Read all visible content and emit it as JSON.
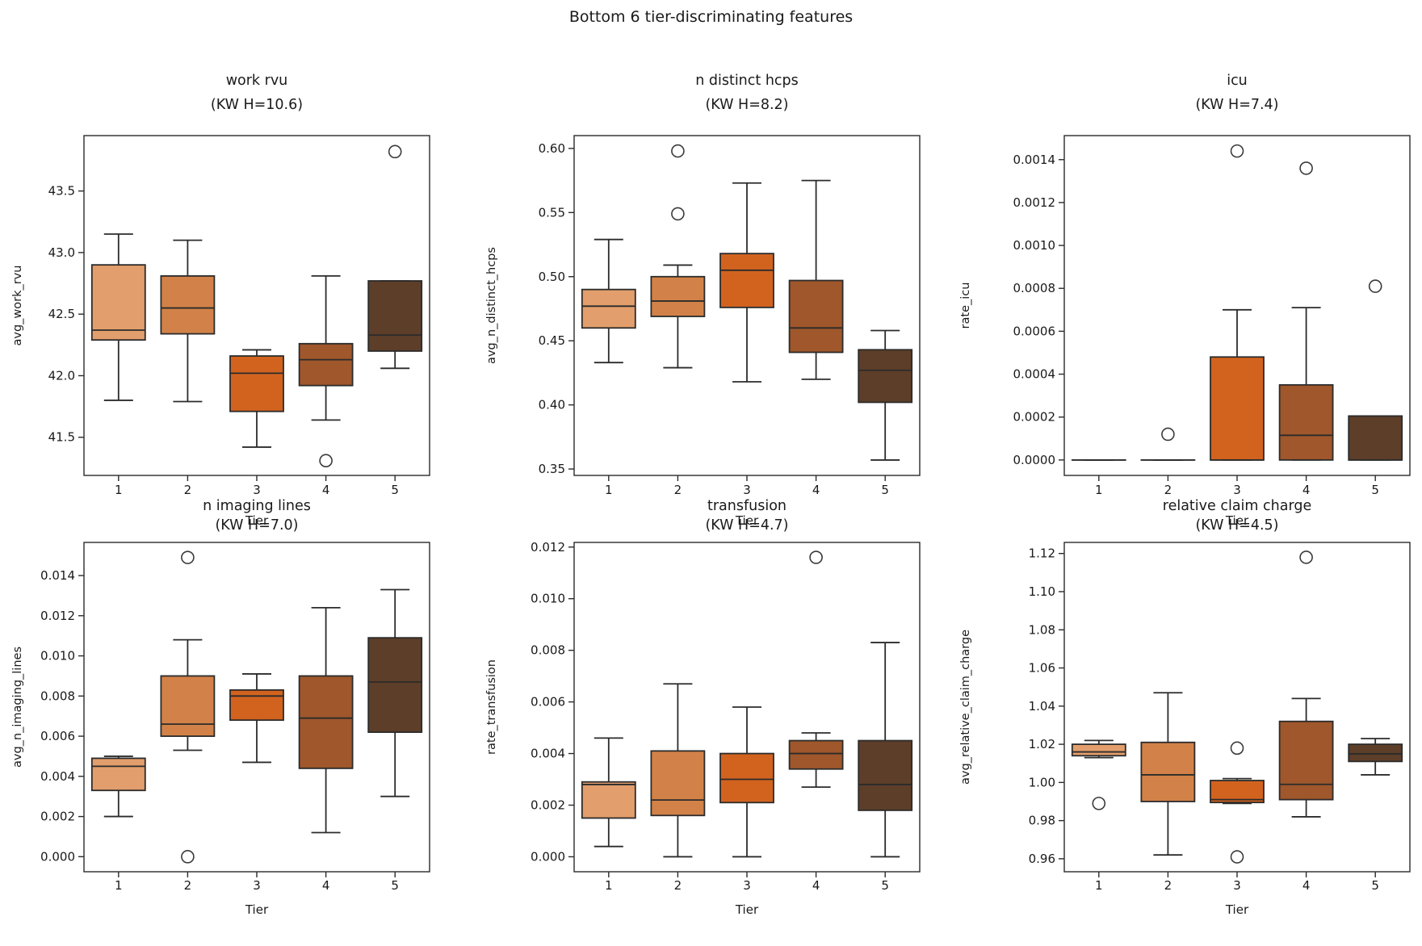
{
  "figure": {
    "suptitle": "Bottom 6 tier-discriminating features",
    "background_color": "#ffffff",
    "line_color": "#2b2b2b",
    "tier_colors": [
      "#e29e6c",
      "#d28248",
      "#d2631f",
      "#9f572b",
      "#5d3e28"
    ]
  },
  "chart_data": [
    {
      "type": "box",
      "title": "work rvu",
      "subtitle": "(KW H=10.6)",
      "xlabel": "Tier",
      "ylabel": "avg_work_rvu",
      "categories": [
        "1",
        "2",
        "3",
        "4",
        "5"
      ],
      "row": 0,
      "col": 0,
      "ylim": [
        41.19,
        43.95
      ],
      "ytick_values": [
        41.5,
        42.0,
        42.5,
        43.0,
        43.5
      ],
      "ytick_labels": [
        "41.5",
        "42.0",
        "42.5",
        "43.0",
        "43.5"
      ],
      "grid": false,
      "boxes": [
        {
          "whislo": 41.8,
          "q1": 42.29,
          "med": 42.37,
          "q3": 42.9,
          "whishi": 43.15,
          "fliers": []
        },
        {
          "whislo": 41.79,
          "q1": 42.34,
          "med": 42.55,
          "q3": 42.81,
          "whishi": 43.1,
          "fliers": []
        },
        {
          "whislo": 41.42,
          "q1": 41.71,
          "med": 42.02,
          "q3": 42.16,
          "whishi": 42.21,
          "fliers": []
        },
        {
          "whislo": 41.64,
          "q1": 41.92,
          "med": 42.13,
          "q3": 42.26,
          "whishi": 42.81,
          "fliers": [
            41.31
          ]
        },
        {
          "whislo": 42.06,
          "q1": 42.2,
          "med": 42.33,
          "q3": 42.77,
          "whishi": 42.77,
          "fliers": [
            43.82
          ]
        }
      ]
    },
    {
      "type": "box",
      "title": "n distinct hcps",
      "subtitle": "(KW H=8.2)",
      "xlabel": "Tier",
      "ylabel": "avg_n_distinct_hcps",
      "categories": [
        "1",
        "2",
        "3",
        "4",
        "5"
      ],
      "row": 0,
      "col": 1,
      "ylim": [
        0.345,
        0.61
      ],
      "ytick_values": [
        0.35,
        0.4,
        0.45,
        0.5,
        0.55,
        0.6
      ],
      "ytick_labels": [
        "0.35",
        "0.40",
        "0.45",
        "0.50",
        "0.55",
        "0.60"
      ],
      "grid": false,
      "boxes": [
        {
          "whislo": 0.433,
          "q1": 0.46,
          "med": 0.477,
          "q3": 0.49,
          "whishi": 0.529,
          "fliers": []
        },
        {
          "whislo": 0.429,
          "q1": 0.469,
          "med": 0.481,
          "q3": 0.5,
          "whishi": 0.509,
          "fliers": [
            0.549,
            0.598
          ]
        },
        {
          "whislo": 0.418,
          "q1": 0.476,
          "med": 0.505,
          "q3": 0.518,
          "whishi": 0.573,
          "fliers": []
        },
        {
          "whislo": 0.42,
          "q1": 0.441,
          "med": 0.46,
          "q3": 0.497,
          "whishi": 0.575,
          "fliers": []
        },
        {
          "whislo": 0.357,
          "q1": 0.402,
          "med": 0.427,
          "q3": 0.443,
          "whishi": 0.458,
          "fliers": []
        }
      ]
    },
    {
      "type": "box",
      "title": "icu",
      "subtitle": "(KW H=7.4)",
      "xlabel": "Tier",
      "ylabel": "rate_icu",
      "categories": [
        "1",
        "2",
        "3",
        "4",
        "5"
      ],
      "row": 0,
      "col": 2,
      "ylim": [
        -7.2e-05,
        0.001512
      ],
      "ytick_values": [
        0.0,
        0.0002,
        0.0004,
        0.0006,
        0.0008,
        0.001,
        0.0012,
        0.0014
      ],
      "ytick_labels": [
        "0.0000",
        "0.0002",
        "0.0004",
        "0.0006",
        "0.0008",
        "0.0010",
        "0.0012",
        "0.0014"
      ],
      "grid": false,
      "boxes": [
        {
          "whislo": 0.0,
          "q1": 0.0,
          "med": 0.0,
          "q3": 0.0,
          "whishi": 0.0,
          "fliers": []
        },
        {
          "whislo": 0.0,
          "q1": 0.0,
          "med": 0.0,
          "q3": 0.0,
          "whishi": 0.0,
          "fliers": [
            0.00012
          ]
        },
        {
          "whislo": 0.0,
          "q1": 0.0,
          "med": 0.0,
          "q3": 0.00048,
          "whishi": 0.0007,
          "fliers": [
            0.00144
          ]
        },
        {
          "whislo": 0.0,
          "q1": 0.0,
          "med": 0.000115,
          "q3": 0.00035,
          "whishi": 0.00071,
          "fliers": [
            0.00136
          ]
        },
        {
          "whislo": 0.0,
          "q1": 0.0,
          "med": 0.0,
          "q3": 0.000205,
          "whishi": 0.000205,
          "fliers": [
            0.00081
          ]
        }
      ]
    },
    {
      "type": "box",
      "title": "n imaging lines",
      "subtitle": "(KW H=7.0)",
      "xlabel": "Tier",
      "ylabel": "avg_n_imaging_lines",
      "categories": [
        "1",
        "2",
        "3",
        "4",
        "5"
      ],
      "row": 1,
      "col": 0,
      "ylim": [
        -0.00075,
        0.01565
      ],
      "ytick_values": [
        0.0,
        0.002,
        0.004,
        0.006,
        0.008,
        0.01,
        0.012,
        0.014
      ],
      "ytick_labels": [
        "0.000",
        "0.002",
        "0.004",
        "0.006",
        "0.008",
        "0.010",
        "0.012",
        "0.014"
      ],
      "grid": false,
      "boxes": [
        {
          "whislo": 0.002,
          "q1": 0.0033,
          "med": 0.0045,
          "q3": 0.0049,
          "whishi": 0.005,
          "fliers": []
        },
        {
          "whislo": 0.0053,
          "q1": 0.006,
          "med": 0.0066,
          "q3": 0.009,
          "whishi": 0.0108,
          "fliers": [
            0.0149,
            0.0
          ]
        },
        {
          "whislo": 0.0047,
          "q1": 0.0068,
          "med": 0.008,
          "q3": 0.0083,
          "whishi": 0.0091,
          "fliers": []
        },
        {
          "whislo": 0.0012,
          "q1": 0.0044,
          "med": 0.0069,
          "q3": 0.009,
          "whishi": 0.0124,
          "fliers": []
        },
        {
          "whislo": 0.003,
          "q1": 0.0062,
          "med": 0.0087,
          "q3": 0.0109,
          "whishi": 0.0133,
          "fliers": []
        }
      ]
    },
    {
      "type": "box",
      "title": "transfusion",
      "subtitle": "(KW H=4.7)",
      "xlabel": "Tier",
      "ylabel": "rate_transfusion",
      "categories": [
        "1",
        "2",
        "3",
        "4",
        "5"
      ],
      "row": 1,
      "col": 1,
      "ylim": [
        -0.00058,
        0.01218
      ],
      "ytick_values": [
        0.0,
        0.002,
        0.004,
        0.006,
        0.008,
        0.01,
        0.012
      ],
      "ytick_labels": [
        "0.000",
        "0.002",
        "0.004",
        "0.006",
        "0.008",
        "0.010",
        "0.012"
      ],
      "grid": false,
      "boxes": [
        {
          "whislo": 0.0004,
          "q1": 0.0015,
          "med": 0.0028,
          "q3": 0.0029,
          "whishi": 0.0046,
          "fliers": []
        },
        {
          "whislo": 0.0,
          "q1": 0.0016,
          "med": 0.0022,
          "q3": 0.0041,
          "whishi": 0.0067,
          "fliers": []
        },
        {
          "whislo": 0.0,
          "q1": 0.0021,
          "med": 0.003,
          "q3": 0.004,
          "whishi": 0.0058,
          "fliers": []
        },
        {
          "whislo": 0.0027,
          "q1": 0.0034,
          "med": 0.004,
          "q3": 0.0045,
          "whishi": 0.0048,
          "fliers": [
            0.0116
          ]
        },
        {
          "whislo": 0.0,
          "q1": 0.0018,
          "med": 0.0028,
          "q3": 0.0045,
          "whishi": 0.0083,
          "fliers": []
        }
      ]
    },
    {
      "type": "box",
      "title": "relative claim charge",
      "subtitle": "(KW H=4.5)",
      "xlabel": "Tier",
      "ylabel": "avg_relative_claim_charge",
      "categories": [
        "1",
        "2",
        "3",
        "4",
        "5"
      ],
      "row": 1,
      "col": 2,
      "ylim": [
        0.9532,
        1.1258
      ],
      "ytick_values": [
        0.96,
        0.98,
        1.0,
        1.02,
        1.04,
        1.06,
        1.08,
        1.1,
        1.12
      ],
      "ytick_labels": [
        "0.96",
        "0.98",
        "1.00",
        "1.02",
        "1.04",
        "1.06",
        "1.08",
        "1.10",
        "1.12"
      ],
      "grid": false,
      "boxes": [
        {
          "whislo": 1.013,
          "q1": 1.014,
          "med": 1.016,
          "q3": 1.02,
          "whishi": 1.022,
          "fliers": [
            0.989
          ]
        },
        {
          "whislo": 0.962,
          "q1": 0.99,
          "med": 1.004,
          "q3": 1.021,
          "whishi": 1.047,
          "fliers": []
        },
        {
          "whislo": 0.989,
          "q1": 0.9895,
          "med": 0.991,
          "q3": 1.001,
          "whishi": 1.002,
          "fliers": [
            1.018,
            0.961
          ]
        },
        {
          "whislo": 0.982,
          "q1": 0.991,
          "med": 0.999,
          "q3": 1.032,
          "whishi": 1.044,
          "fliers": [
            1.118
          ]
        },
        {
          "whislo": 1.004,
          "q1": 1.011,
          "med": 1.015,
          "q3": 1.02,
          "whishi": 1.023,
          "fliers": []
        }
      ]
    }
  ]
}
